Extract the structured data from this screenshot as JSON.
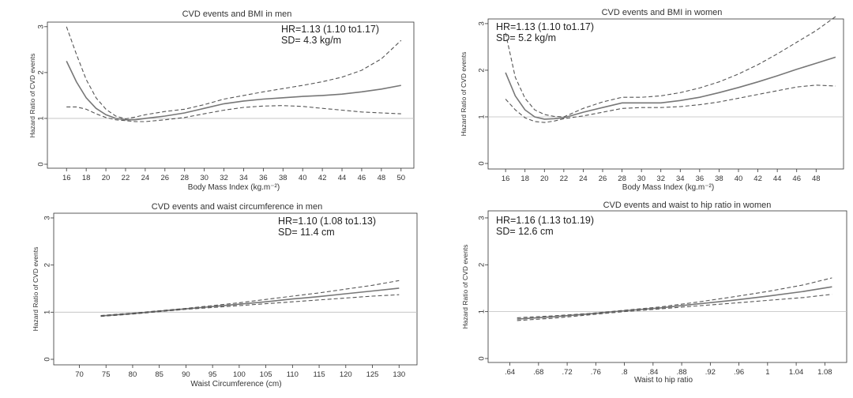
{
  "chart_data": [
    {
      "type": "line",
      "title": "CVD events and BMI in men",
      "annotation_hr": "HR=1.13 (1.10 to1.17)",
      "annotation_sd": "SD= 4.3 kg/m",
      "xlabel": "Body Mass Index (kg.m⁻²)",
      "ylabel": "Hazard Ratio of CVD events",
      "xlim": [
        15.5,
        50.5
      ],
      "ylim": [
        0,
        3.1
      ],
      "xticks": [
        16,
        18,
        20,
        22,
        24,
        26,
        28,
        30,
        32,
        34,
        36,
        38,
        40,
        42,
        44,
        46,
        48,
        50
      ],
      "xtick_labels": [
        "16",
        "18",
        "20",
        "22",
        "24",
        "26",
        "28",
        "30",
        "32",
        "34",
        "36",
        "38",
        "40",
        "42",
        "44",
        "46",
        "48",
        "50"
      ],
      "yticks": [
        0,
        1,
        2,
        3
      ],
      "reference_line": 1,
      "series": [
        {
          "name": "Hazard ratio",
          "style": "solid",
          "x": [
            16,
            17,
            18,
            19,
            20,
            21,
            22,
            23,
            24,
            26,
            28,
            30,
            32,
            34,
            36,
            38,
            40,
            42,
            44,
            46,
            48,
            50
          ],
          "y": [
            2.25,
            1.8,
            1.45,
            1.22,
            1.08,
            1.0,
            0.97,
            0.97,
            1.0,
            1.05,
            1.12,
            1.22,
            1.32,
            1.38,
            1.42,
            1.45,
            1.48,
            1.5,
            1.53,
            1.58,
            1.64,
            1.72
          ]
        },
        {
          "name": "Upper 95% CI",
          "style": "dashed",
          "x": [
            16,
            17,
            18,
            19,
            20,
            21,
            22,
            23,
            24,
            26,
            28,
            30,
            32,
            34,
            36,
            38,
            40,
            42,
            44,
            46,
            48,
            50
          ],
          "y": [
            3.0,
            2.4,
            1.85,
            1.45,
            1.2,
            1.05,
            0.99,
            1.03,
            1.08,
            1.15,
            1.2,
            1.3,
            1.42,
            1.5,
            1.58,
            1.65,
            1.72,
            1.8,
            1.9,
            2.05,
            2.3,
            2.7
          ]
        },
        {
          "name": "Lower 95% CI",
          "style": "dashed",
          "x": [
            16,
            17,
            18,
            19,
            20,
            21,
            22,
            23,
            24,
            26,
            28,
            30,
            32,
            34,
            36,
            38,
            40,
            42,
            44,
            46,
            48,
            50
          ],
          "y": [
            1.25,
            1.25,
            1.2,
            1.1,
            1.02,
            0.97,
            0.95,
            0.93,
            0.93,
            0.97,
            1.02,
            1.1,
            1.18,
            1.24,
            1.27,
            1.28,
            1.26,
            1.22,
            1.18,
            1.14,
            1.12,
            1.1
          ]
        }
      ]
    },
    {
      "type": "line",
      "title": "CVD events and BMI in women",
      "annotation_hr": "HR=1.13 (1.10 to1.17)",
      "annotation_sd": "SD= 5.2 kg/m",
      "xlabel": "Body Mass Index (kg.m⁻²)",
      "ylabel": "Hazard Ratio of CVD events",
      "xlim": [
        15.5,
        50.5
      ],
      "ylim": [
        0,
        3.1
      ],
      "xticks": [
        16,
        18,
        20,
        22,
        24,
        26,
        28,
        30,
        32,
        34,
        36,
        38,
        40,
        42,
        44,
        46,
        48
      ],
      "xtick_labels": [
        "16",
        "18",
        "20",
        "22",
        "24",
        "26",
        "28",
        "30",
        "32",
        "34",
        "36",
        "38",
        "40",
        "42",
        "44",
        "46",
        "48"
      ],
      "yticks": [
        0,
        1,
        2,
        3
      ],
      "reference_line": 1,
      "series": [
        {
          "name": "Hazard ratio",
          "style": "solid",
          "x": [
            16,
            17,
            18,
            19,
            20,
            21,
            22,
            24,
            26,
            28,
            30,
            32,
            34,
            36,
            38,
            40,
            42,
            44,
            46,
            48,
            50
          ],
          "y": [
            1.95,
            1.45,
            1.15,
            1.0,
            0.95,
            0.96,
            0.98,
            1.1,
            1.2,
            1.3,
            1.3,
            1.3,
            1.35,
            1.42,
            1.52,
            1.63,
            1.75,
            1.88,
            2.02,
            2.15,
            2.28
          ]
        },
        {
          "name": "Upper 95% CI",
          "style": "dashed",
          "x": [
            16,
            17,
            18,
            19,
            20,
            21,
            22,
            24,
            26,
            28,
            30,
            32,
            34,
            36,
            38,
            40,
            42,
            44,
            46,
            48,
            50
          ],
          "y": [
            2.8,
            1.85,
            1.4,
            1.15,
            1.05,
            1.01,
            1.0,
            1.18,
            1.32,
            1.42,
            1.42,
            1.45,
            1.52,
            1.62,
            1.75,
            1.92,
            2.12,
            2.35,
            2.6,
            2.85,
            3.15
          ]
        },
        {
          "name": "Lower 95% CI",
          "style": "dashed",
          "x": [
            16,
            17,
            18,
            19,
            20,
            21,
            22,
            24,
            26,
            28,
            30,
            32,
            34,
            36,
            38,
            40,
            42,
            44,
            46,
            48,
            50
          ],
          "y": [
            1.38,
            1.15,
            0.98,
            0.9,
            0.88,
            0.91,
            0.96,
            1.02,
            1.1,
            1.18,
            1.2,
            1.2,
            1.22,
            1.26,
            1.32,
            1.4,
            1.48,
            1.56,
            1.64,
            1.68,
            1.66
          ]
        }
      ]
    },
    {
      "type": "line",
      "title": "CVD events and waist circumference in men",
      "annotation_hr": "HR=1.10 (1.08 to1.13)",
      "annotation_sd": "SD= 11.4 cm",
      "xlabel": "Waist Circumference (cm)",
      "ylabel": "Hazard Ratio of CVD events",
      "xlim": [
        68,
        131
      ],
      "ylim": [
        0,
        3.1
      ],
      "xticks": [
        70,
        75,
        80,
        85,
        90,
        95,
        100,
        105,
        110,
        115,
        120,
        125,
        130
      ],
      "xtick_labels": [
        "70",
        "75",
        "80",
        "85",
        "90",
        "95",
        "100",
        "105",
        "110",
        "115",
        "120",
        "125",
        "130"
      ],
      "yticks": [
        0,
        1,
        2,
        3
      ],
      "reference_line": 1,
      "series": [
        {
          "name": "Hazard ratio",
          "style": "solid",
          "x": [
            74,
            80,
            85,
            90,
            95,
            100,
            105,
            110,
            115,
            120,
            125,
            130
          ],
          "y": [
            0.92,
            0.97,
            1.02,
            1.07,
            1.12,
            1.17,
            1.22,
            1.28,
            1.33,
            1.39,
            1.45,
            1.51
          ]
        },
        {
          "name": "Upper 95% CI",
          "style": "dashed",
          "x": [
            74,
            80,
            85,
            90,
            95,
            100,
            105,
            110,
            115,
            120,
            125,
            130
          ],
          "y": [
            0.93,
            0.98,
            1.03,
            1.08,
            1.14,
            1.2,
            1.27,
            1.34,
            1.41,
            1.49,
            1.57,
            1.67
          ]
        },
        {
          "name": "Lower 95% CI",
          "style": "dashed",
          "x": [
            74,
            80,
            85,
            90,
            95,
            100,
            105,
            110,
            115,
            120,
            125,
            130
          ],
          "y": [
            0.91,
            0.96,
            1.01,
            1.06,
            1.1,
            1.14,
            1.18,
            1.22,
            1.26,
            1.3,
            1.34,
            1.37
          ]
        }
      ]
    },
    {
      "type": "line",
      "title": "CVD events and waist to hip ratio in women",
      "annotation_hr": "HR=1.16 (1.13 to1.19)",
      "annotation_sd": "SD= 12.6 cm",
      "xlabel": "Waist to hip ratio",
      "ylabel": "Hazard Ratio of CVD events",
      "xlim": [
        0.625,
        1.105
      ],
      "ylim": [
        0,
        3.1
      ],
      "xticks": [
        0.64,
        0.68,
        0.72,
        0.76,
        0.8,
        0.84,
        0.88,
        0.92,
        0.96,
        1.0,
        1.04,
        1.08
      ],
      "xtick_labels": [
        ".64",
        ".68",
        ".72",
        ".76",
        ".8",
        ".84",
        ".88",
        ".92",
        ".96",
        "1",
        "1.04",
        "1.08"
      ],
      "yticks": [
        0,
        1,
        2,
        3
      ],
      "reference_line": 1,
      "series": [
        {
          "name": "Hazard ratio",
          "style": "solid",
          "x": [
            0.65,
            0.7,
            0.75,
            0.8,
            0.85,
            0.9,
            0.95,
            1.0,
            1.05,
            1.09
          ],
          "y": [
            0.84,
            0.89,
            0.95,
            1.02,
            1.08,
            1.16,
            1.24,
            1.33,
            1.43,
            1.53
          ]
        },
        {
          "name": "Upper 95% CI",
          "style": "dashed",
          "x": [
            0.65,
            0.7,
            0.75,
            0.8,
            0.85,
            0.9,
            0.95,
            1.0,
            1.05,
            1.09
          ],
          "y": [
            0.87,
            0.91,
            0.96,
            1.03,
            1.1,
            1.2,
            1.31,
            1.43,
            1.57,
            1.72
          ]
        },
        {
          "name": "Lower 95% CI",
          "style": "dashed",
          "x": [
            0.65,
            0.7,
            0.75,
            0.8,
            0.85,
            0.9,
            0.95,
            1.0,
            1.05,
            1.09
          ],
          "y": [
            0.81,
            0.86,
            0.93,
            1.0,
            1.06,
            1.12,
            1.18,
            1.24,
            1.3,
            1.37
          ]
        }
      ]
    }
  ]
}
